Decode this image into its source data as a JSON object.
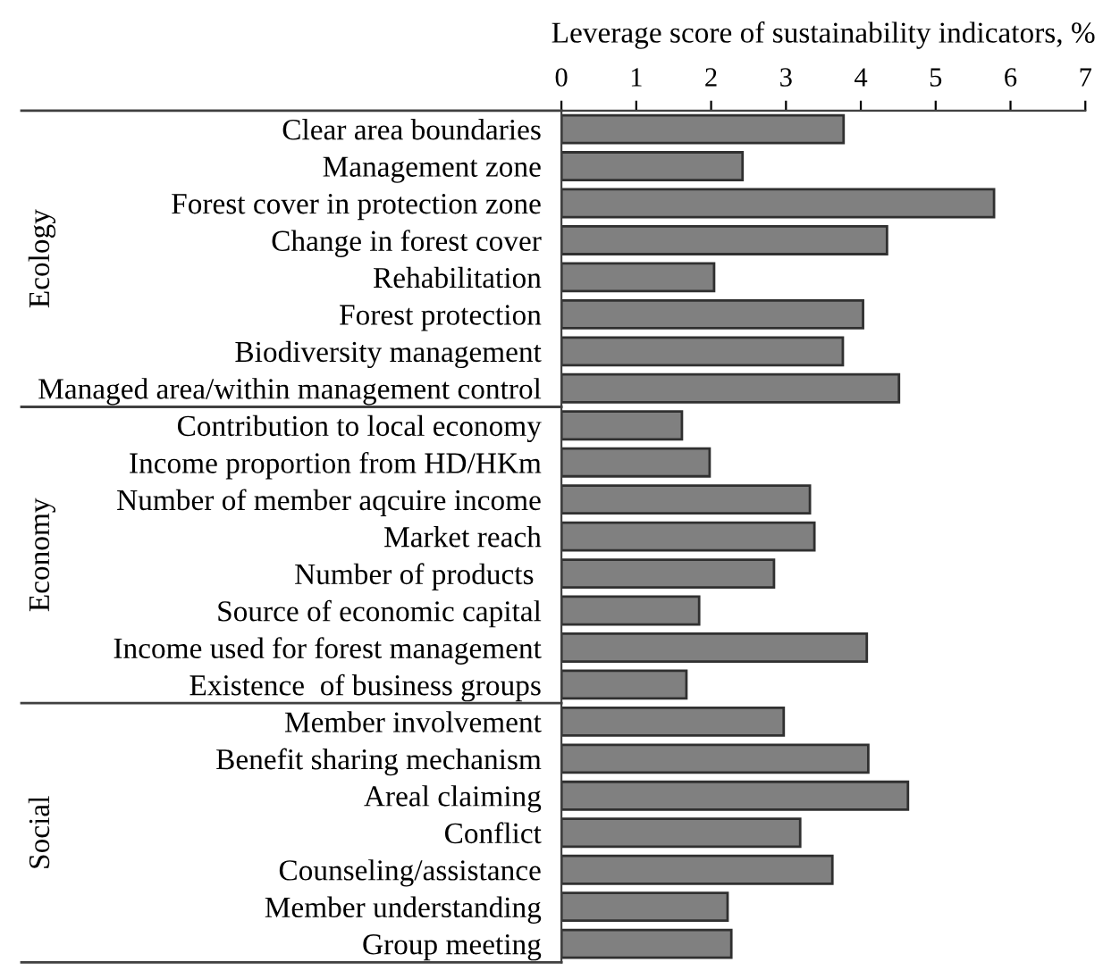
{
  "chart_data": {
    "type": "bar",
    "orientation": "horizontal",
    "xlabel": "Leverage score of sustainability indicators, %",
    "categories": [
      "Clear area boundaries",
      "Management zone",
      "Forest cover in protection zone",
      "Change in forest cover",
      "Rehabilitation",
      "Forest protection",
      "Biodiversity management",
      "Managed area/within management control",
      "Contribution to local economy",
      "Income proportion from HD/HKm",
      "Number of member aqcuire income",
      "Market reach",
      "Number of products ",
      "Source of economic capital",
      "Income used for forest management",
      "Existence  of business groups",
      "Member involvement",
      "Benefit sharing mechanism",
      "Areal claiming",
      "Conflict",
      "Counseling/assistance",
      "Member understanding",
      "Group meeting"
    ],
    "values": [
      3.77,
      2.42,
      5.78,
      4.35,
      2.04,
      4.03,
      3.76,
      4.51,
      1.61,
      1.98,
      3.32,
      3.38,
      2.84,
      1.84,
      4.08,
      1.67,
      2.97,
      4.1,
      4.63,
      3.19,
      3.62,
      2.22,
      2.27
    ],
    "color": "#808080",
    "xlim": [
      0,
      7
    ],
    "xticks": [
      0,
      1,
      2,
      3,
      4,
      5,
      6,
      7
    ],
    "annotations": [
      "Ecology",
      "Economy",
      "Social"
    ],
    "grid": false,
    "legend": false
  }
}
